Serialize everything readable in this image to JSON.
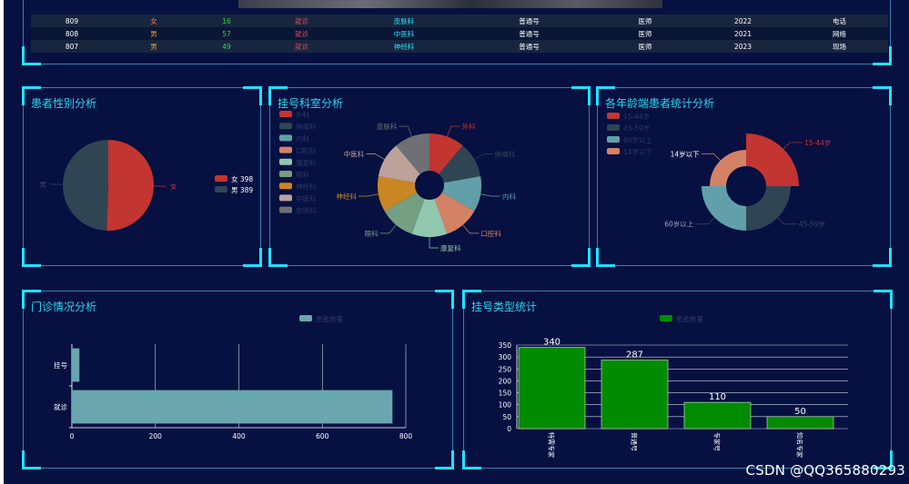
{
  "table": {
    "rows": [
      [
        "809",
        "女",
        "16",
        "就诊",
        "皮肤科",
        "普通号",
        "医师",
        "2022",
        "电话"
      ],
      [
        "808",
        "男",
        "57",
        "就诊",
        "中医科",
        "普通号",
        "医师",
        "2021",
        "网络"
      ],
      [
        "807",
        "男",
        "49",
        "就诊",
        "神经科",
        "普通号",
        "医师",
        "2023",
        "现场"
      ]
    ]
  },
  "panels": {
    "gender": {
      "title": "患者性别分析"
    },
    "dept": {
      "title": "挂号科室分析"
    },
    "age": {
      "title": "各年龄端患者统计分析"
    },
    "clinic": {
      "title": "门诊情况分析"
    },
    "regtype": {
      "title": "挂号类型统计"
    }
  },
  "watermark": "CSDN @QQ365880293",
  "chart_data": [
    {
      "type": "pie",
      "title": "患者性别分析",
      "labels": [
        "女",
        "男"
      ],
      "values": [
        398,
        389
      ],
      "legend": [
        "女 398",
        "男 389"
      ],
      "legend_position": "right",
      "colors": [
        "#c23531",
        "#2f4554"
      ]
    },
    {
      "type": "pie",
      "title": "挂号科室分析",
      "labels": [
        "外科",
        "肿瘤科",
        "内科",
        "口腔科",
        "康复科",
        "眼科",
        "神经科",
        "中医科",
        "皮肤科"
      ],
      "values": [
        1,
        1,
        1,
        1,
        1,
        1,
        1,
        1,
        1
      ],
      "legend_position": "top-left",
      "colors": [
        "#c23531",
        "#2f4554",
        "#61a0a8",
        "#d48265",
        "#91c7ae",
        "#749f83",
        "#ca8622",
        "#bda29a",
        "#6e7074"
      ]
    },
    {
      "type": "pie",
      "title": "各年龄端患者统计分析",
      "labels": [
        "15-44岁",
        "45-59岁",
        "60岁以上",
        "14岁以下"
      ],
      "values": [
        4,
        3,
        3,
        2
      ],
      "legend": [
        "15-44岁",
        "45-59岁",
        "60岁以上",
        "14岁以下"
      ],
      "legend_position": "top-left",
      "colors": [
        "#c23531",
        "#2f4554",
        "#61a0a8",
        "#d48265"
      ]
    },
    {
      "type": "bar",
      "title": "门诊情况分析",
      "orientation": "horizontal",
      "categories": [
        "就诊",
        "挂号"
      ],
      "series": [
        {
          "name": "患者数量",
          "values": [
            768,
            18
          ]
        }
      ],
      "xlim": [
        0,
        800
      ],
      "xticks": [
        "0",
        "200",
        "400",
        "600",
        "800"
      ],
      "grid": true,
      "color": "#6aa6ad"
    },
    {
      "type": "bar",
      "title": "挂号类型统计",
      "categories": [
        "特需专家",
        "普通号",
        "专家号",
        "知名专家"
      ],
      "series": [
        {
          "name": "患者数量",
          "values": [
            340,
            287,
            110,
            50
          ]
        }
      ],
      "ylim": [
        0,
        350
      ],
      "yticks": [
        "0",
        "50",
        "100",
        "150",
        "200",
        "250",
        "300",
        "350"
      ],
      "grid": true,
      "color": "#008b00"
    }
  ]
}
